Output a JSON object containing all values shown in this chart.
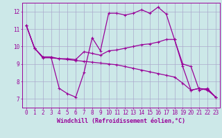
{
  "title": "",
  "xlabel": "Windchill (Refroidissement éolien,°C)",
  "ylabel": "",
  "xlim": [
    -0.5,
    23.5
  ],
  "ylim": [
    6.5,
    12.5
  ],
  "yticks": [
    7,
    8,
    9,
    10,
    11,
    12
  ],
  "xticks": [
    0,
    1,
    2,
    3,
    4,
    5,
    6,
    7,
    8,
    9,
    10,
    11,
    12,
    13,
    14,
    15,
    16,
    17,
    18,
    19,
    20,
    21,
    22,
    23
  ],
  "background_color": "#cce8e8",
  "line_color": "#990099",
  "grid_color": "#aaaacc",
  "curves": [
    {
      "x": [
        0,
        1,
        2,
        3,
        4,
        5,
        6,
        7,
        8,
        9,
        10,
        11,
        12,
        13,
        14,
        15,
        16,
        17,
        18,
        19,
        20,
        21,
        22,
        23
      ],
      "y": [
        11.2,
        9.9,
        9.4,
        9.4,
        7.6,
        7.3,
        7.1,
        8.5,
        10.5,
        9.75,
        11.9,
        11.9,
        11.8,
        11.9,
        12.1,
        11.9,
        12.25,
        11.85,
        10.4,
        8.85,
        7.5,
        7.6,
        7.55,
        7.1
      ]
    },
    {
      "x": [
        0,
        1,
        2,
        3,
        4,
        5,
        6,
        7,
        8,
        9,
        10,
        11,
        12,
        13,
        14,
        15,
        16,
        17,
        18,
        19,
        20,
        21,
        22,
        23
      ],
      "y": [
        11.2,
        9.9,
        9.4,
        9.4,
        9.3,
        9.3,
        9.25,
        9.7,
        9.6,
        9.5,
        9.75,
        9.8,
        9.9,
        10.0,
        10.1,
        10.15,
        10.25,
        10.4,
        10.4,
        9.0,
        8.85,
        7.5,
        7.6,
        7.1
      ]
    },
    {
      "x": [
        0,
        1,
        2,
        3,
        4,
        5,
        6,
        7,
        8,
        9,
        10,
        11,
        12,
        13,
        14,
        15,
        16,
        17,
        18,
        19,
        20,
        21,
        22,
        23
      ],
      "y": [
        11.2,
        9.9,
        9.35,
        9.35,
        9.3,
        9.25,
        9.2,
        9.15,
        9.1,
        9.05,
        9.0,
        8.95,
        8.85,
        8.75,
        8.65,
        8.55,
        8.45,
        8.35,
        8.25,
        7.9,
        7.5,
        7.6,
        7.5,
        7.1
      ]
    }
  ],
  "font_size": 6,
  "tick_font_size": 5.5
}
